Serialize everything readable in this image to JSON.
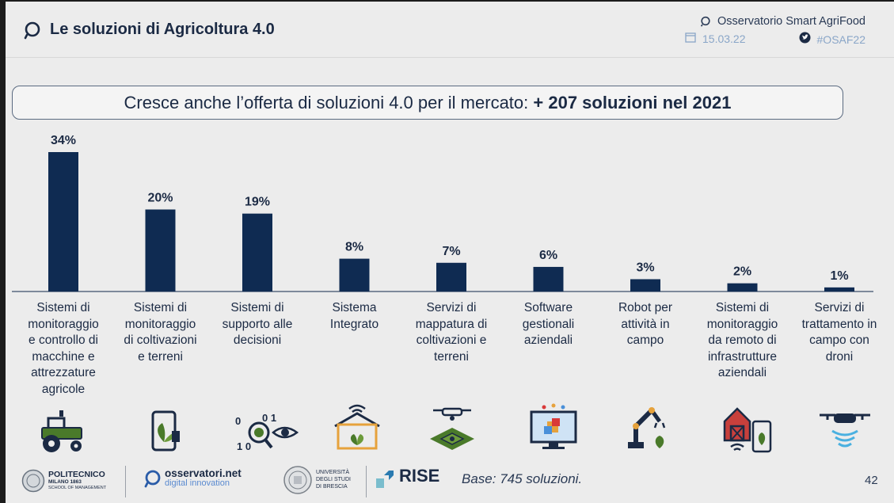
{
  "header": {
    "title": "Le soluzioni di Agricoltura 4.0",
    "org": "Osservatorio Smart AgriFood",
    "date": "15.03.22",
    "hashtag": "#OSAF22"
  },
  "headline": {
    "text": "Cresce anche l’offerta di soluzioni 4.0 per il mercato: ",
    "highlight": "+ 207 soluzioni nel 2021"
  },
  "chart_data": {
    "type": "bar",
    "categories": [
      "Sistemi di monitoraggio e controllo di macchine e attrezzature agricole",
      "Sistemi di monitoraggio di coltivazioni e terreni",
      "Sistemi di supporto alle decisioni",
      "Sistema Integrato",
      "Servizi di mappatura di coltivazioni e terreni",
      "Software gestionali aziendali",
      "Robot per attività in campo",
      "Sistemi di monitoraggio da remoto di infrastrutture aziendali",
      "Servizi di trattamento in campo con droni"
    ],
    "category_lines": [
      [
        "Sistemi di",
        "monitoraggio",
        "e controllo di",
        "macchine e",
        "attrezzature",
        "agricole"
      ],
      [
        "Sistemi di",
        "monitoraggio",
        "di coltivazioni",
        "e terreni"
      ],
      [
        "Sistemi di",
        "supporto alle",
        "decisioni"
      ],
      [
        "Sistema",
        "Integrato"
      ],
      [
        "Servizi di",
        "mappatura di",
        "coltivazioni e",
        "terreni"
      ],
      [
        "Software",
        "gestionali",
        "aziendali"
      ],
      [
        "Robot per",
        "attività in",
        "campo"
      ],
      [
        "Sistemi di",
        "monitoraggio",
        "da remoto di",
        "infrastrutture",
        "aziendali"
      ],
      [
        "Servizi di",
        "trattamento in",
        "campo con",
        "droni"
      ]
    ],
    "values": [
      34,
      20,
      19,
      8,
      7,
      6,
      3,
      2,
      1
    ],
    "value_labels": [
      "34%",
      "20%",
      "19%",
      "8%",
      "7%",
      "6%",
      "3%",
      "2%",
      "1%"
    ],
    "ylim": [
      0,
      34
    ],
    "grid": false,
    "bar_color": "#0f2b52"
  },
  "icons": [
    "tractor-icon",
    "smartphone-plant-icon",
    "data-magnifier-eye-icon",
    "greenhouse-wifi-icon",
    "drone-map-icon",
    "software-monitor-icon",
    "robot-arm-icon",
    "barn-phone-icon",
    "spray-drone-icon"
  ],
  "footer": {
    "polimi_name": "POLITECNICO",
    "polimi_city": "MILANO 1863",
    "polimi_school": "SCHOOL OF MANAGEMENT",
    "osservatori_name": "osservatori.net",
    "osservatori_tag": "digital innovation",
    "unibs_line1": "UNIVERSITÀ",
    "unibs_line2": "DEGLI STUDI",
    "unibs_line3": "DI BRESCIA",
    "rise_name": "RISE",
    "base_note": "Base: 745 soluzioni.",
    "page_number": "42"
  }
}
